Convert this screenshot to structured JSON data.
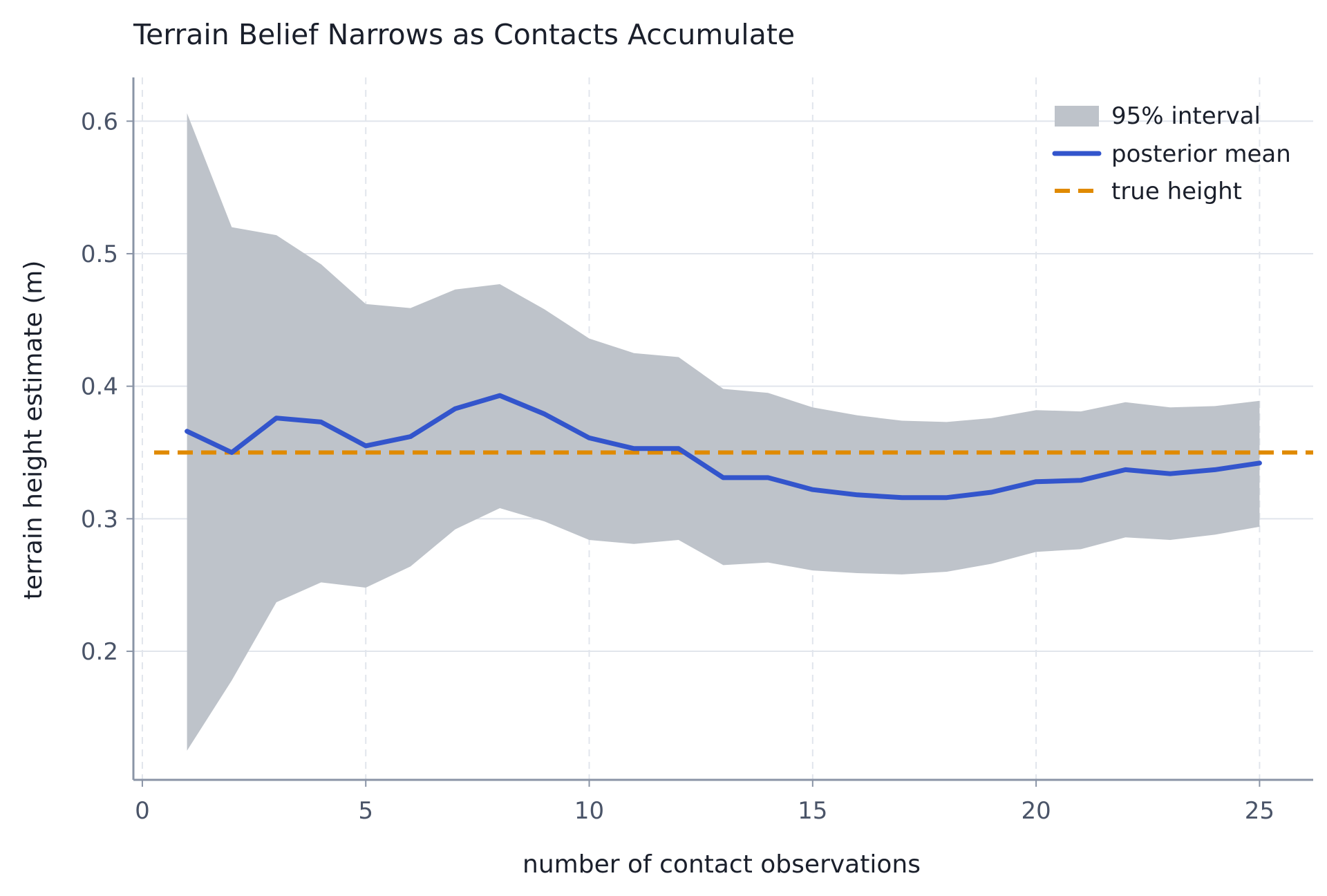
{
  "chart_data": {
    "type": "line",
    "title": "Terrain Belief Narrows as Contacts Accumulate",
    "xlabel": "number of contact observations",
    "ylabel": "terrain height estimate (m)",
    "xlim": [
      -0.2,
      26.2
    ],
    "ylim": [
      0.103,
      0.633
    ],
    "xticks": [
      0,
      5,
      10,
      15,
      20,
      25
    ],
    "yticks": [
      0.2,
      0.3,
      0.4,
      0.5,
      0.6
    ],
    "xtick_labels": [
      "0",
      "5",
      "10",
      "15",
      "20",
      "25"
    ],
    "ytick_labels": [
      "0.2",
      "0.3",
      "0.4",
      "0.5",
      "0.6"
    ],
    "grid": true,
    "legend_position": "top-right",
    "x": [
      1,
      2,
      3,
      4,
      5,
      6,
      7,
      8,
      9,
      10,
      11,
      12,
      13,
      14,
      15,
      16,
      17,
      18,
      19,
      20,
      21,
      22,
      23,
      24,
      25
    ],
    "series": [
      {
        "name": "posterior mean",
        "kind": "line",
        "color": "#3355cc",
        "values": [
          0.366,
          0.35,
          0.376,
          0.373,
          0.355,
          0.362,
          0.383,
          0.393,
          0.379,
          0.361,
          0.353,
          0.353,
          0.331,
          0.331,
          0.322,
          0.318,
          0.316,
          0.316,
          0.32,
          0.328,
          0.329,
          0.337,
          0.334,
          0.337,
          0.342
        ]
      },
      {
        "name": "95% interval",
        "kind": "band",
        "color": "#bec3ca",
        "lower": [
          0.125,
          0.178,
          0.237,
          0.252,
          0.248,
          0.264,
          0.292,
          0.308,
          0.298,
          0.284,
          0.281,
          0.284,
          0.265,
          0.267,
          0.261,
          0.259,
          0.258,
          0.26,
          0.266,
          0.275,
          0.277,
          0.286,
          0.284,
          0.288,
          0.294
        ],
        "upper": [
          0.606,
          0.52,
          0.514,
          0.492,
          0.462,
          0.459,
          0.473,
          0.477,
          0.458,
          0.436,
          0.425,
          0.422,
          0.398,
          0.395,
          0.384,
          0.378,
          0.374,
          0.373,
          0.376,
          0.382,
          0.381,
          0.388,
          0.384,
          0.385,
          0.389
        ]
      },
      {
        "name": "true height",
        "kind": "hline",
        "color": "#e08a00",
        "value": 0.35
      }
    ],
    "legend": [
      "95% interval",
      "posterior mean",
      "true height"
    ],
    "colors": {
      "axis": "#8a94a6",
      "grid": "#e1e5ec",
      "tick_text": "#4a5468",
      "text": "#1a1f2b"
    }
  }
}
